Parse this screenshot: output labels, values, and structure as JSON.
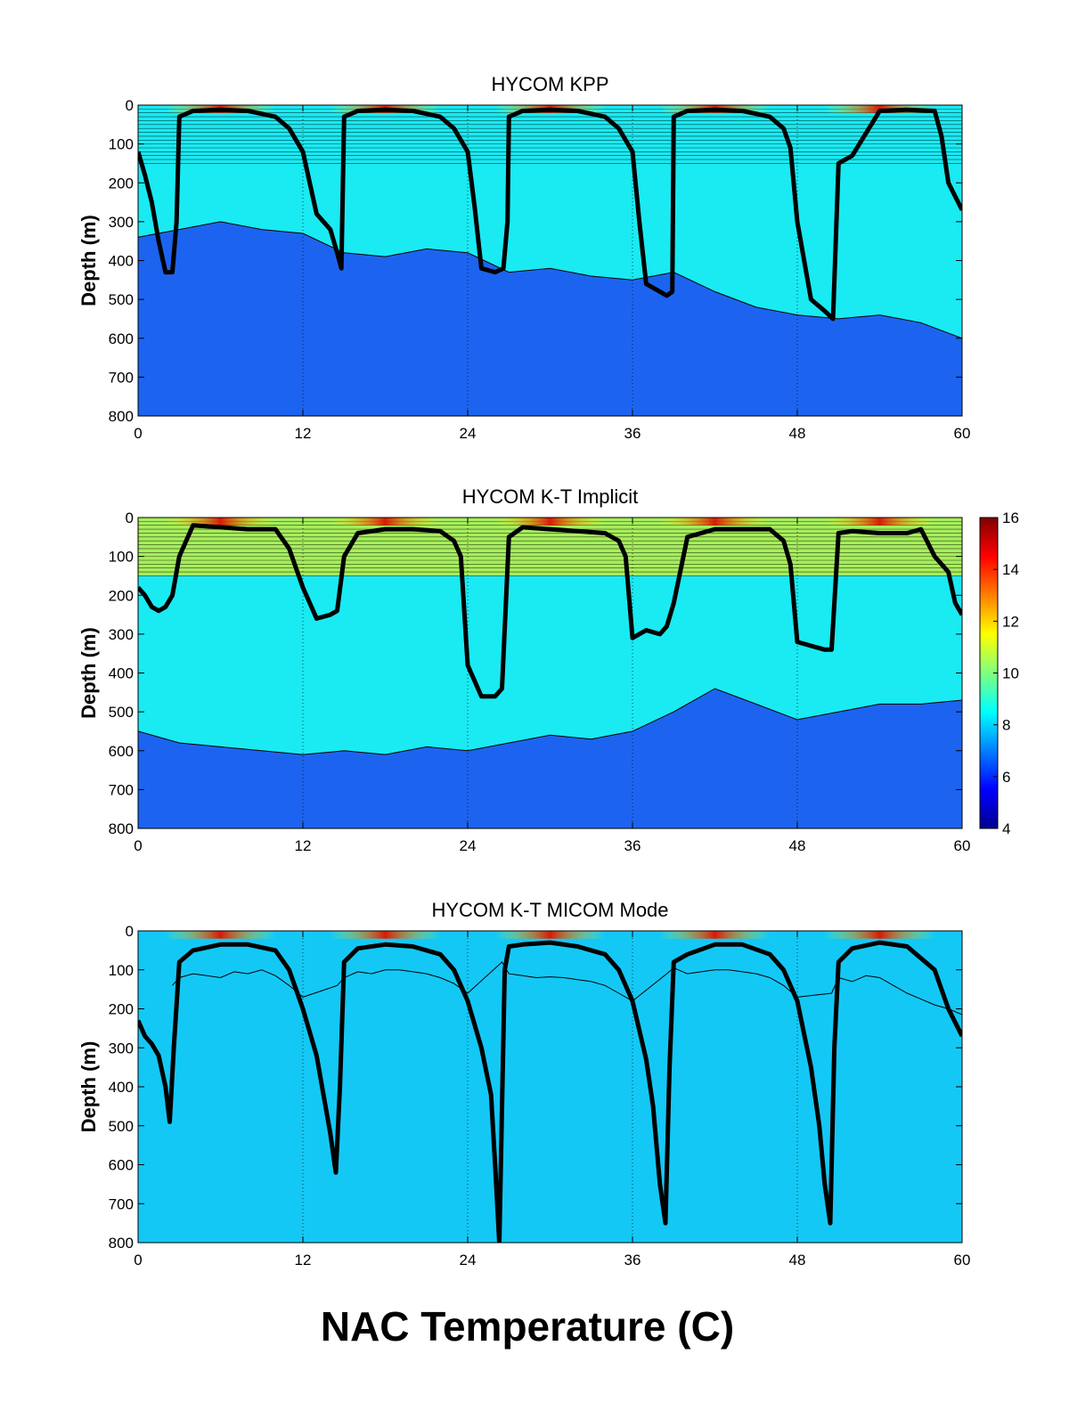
{
  "figure_title": "NAC Temperature (C)",
  "chart_data": [
    {
      "type": "heatmap",
      "title": "HYCOM KPP",
      "ylabel": "Depth (m)",
      "xlabel": "",
      "xlim": [
        0,
        60
      ],
      "ylim": [
        800,
        0
      ],
      "y_reversed": true,
      "xticks": [
        0,
        12,
        24,
        36,
        48,
        60
      ],
      "yticks": [
        0,
        100,
        200,
        300,
        400,
        500,
        600,
        700,
        800
      ],
      "colormap": "jet",
      "color_range": [
        4,
        16
      ],
      "interface_lines_top_depth": 150,
      "iso_contour_depth": {
        "x": [
          0,
          3,
          6,
          9,
          12,
          15,
          18,
          21,
          24,
          27,
          30,
          33,
          36,
          39,
          42,
          45,
          48,
          51,
          54,
          57,
          60
        ],
        "y": [
          340,
          320,
          300,
          320,
          330,
          380,
          390,
          370,
          380,
          430,
          420,
          440,
          450,
          430,
          480,
          520,
          540,
          550,
          540,
          560,
          600
        ]
      },
      "mixed_layer_depth": {
        "x": [
          0,
          0.5,
          1,
          1.5,
          2,
          2.5,
          2.8,
          3,
          4,
          6,
          8,
          10,
          11,
          12,
          12.5,
          13,
          14,
          14.5,
          14.8,
          15,
          16,
          18,
          20,
          22,
          23,
          24,
          24.5,
          25,
          26,
          26.6,
          26.9,
          27,
          28,
          30,
          32,
          34,
          35,
          36,
          36.5,
          37,
          38,
          38.5,
          38.9,
          39,
          40,
          42,
          44,
          46,
          47,
          47.5,
          48,
          49,
          50,
          50.6,
          51,
          52,
          54,
          56,
          58,
          58.5,
          59,
          60
        ],
        "y": [
          120,
          180,
          250,
          350,
          430,
          430,
          300,
          30,
          15,
          12,
          15,
          30,
          60,
          120,
          200,
          280,
          320,
          380,
          420,
          30,
          15,
          12,
          15,
          30,
          60,
          120,
          260,
          420,
          430,
          420,
          300,
          30,
          15,
          12,
          15,
          30,
          60,
          120,
          300,
          460,
          480,
          490,
          480,
          30,
          15,
          12,
          15,
          30,
          60,
          110,
          300,
          500,
          530,
          550,
          150,
          130,
          15,
          12,
          15,
          80,
          200,
          270
        ]
      }
    },
    {
      "type": "heatmap",
      "title": "HYCOM K-T Implicit",
      "ylabel": "Depth (m)",
      "xlabel": "",
      "xlim": [
        0,
        60
      ],
      "ylim": [
        800,
        0
      ],
      "y_reversed": true,
      "xticks": [
        0,
        12,
        24,
        36,
        48,
        60
      ],
      "yticks": [
        0,
        100,
        200,
        300,
        400,
        500,
        600,
        700,
        800
      ],
      "colormap": "jet",
      "color_range": [
        4,
        16
      ],
      "colorbar_ticks": [
        4,
        6,
        8,
        10,
        12,
        14,
        16
      ],
      "interface_lines_top_depth": 150,
      "iso_contour_depth": {
        "x": [
          0,
          3,
          6,
          9,
          12,
          15,
          18,
          21,
          24,
          27,
          30,
          33,
          36,
          39,
          42,
          45,
          48,
          51,
          54,
          57,
          60
        ],
        "y": [
          550,
          580,
          590,
          600,
          610,
          600,
          610,
          590,
          600,
          580,
          560,
          570,
          550,
          500,
          440,
          480,
          520,
          500,
          480,
          480,
          470
        ]
      },
      "mixed_layer_depth": {
        "x": [
          0,
          0.5,
          1,
          1.5,
          2,
          2.5,
          3,
          4,
          6,
          8,
          10,
          11,
          12,
          13,
          14,
          14.5,
          15,
          16,
          18,
          20,
          22,
          23,
          23.5,
          24,
          25,
          26,
          26.5,
          27,
          28,
          30,
          32,
          34,
          35,
          35.5,
          36,
          37,
          38,
          38.5,
          39,
          40,
          42,
          44,
          46,
          47,
          47.5,
          48,
          49,
          50,
          50.5,
          51,
          52,
          54,
          56,
          57,
          58,
          59,
          59.5,
          60
        ],
        "y": [
          180,
          200,
          230,
          240,
          230,
          200,
          100,
          20,
          25,
          30,
          30,
          80,
          180,
          260,
          250,
          240,
          100,
          40,
          30,
          30,
          35,
          60,
          100,
          380,
          460,
          460,
          440,
          50,
          25,
          30,
          35,
          40,
          60,
          100,
          310,
          290,
          300,
          280,
          220,
          50,
          30,
          30,
          30,
          60,
          120,
          320,
          330,
          340,
          340,
          40,
          35,
          40,
          40,
          30,
          100,
          140,
          220,
          250
        ]
      }
    },
    {
      "type": "heatmap",
      "title": "HYCOM K-T MICOM Mode",
      "ylabel": "Depth (m)",
      "xlabel": "",
      "xlim": [
        0,
        60
      ],
      "ylim": [
        800,
        0
      ],
      "y_reversed": true,
      "xticks": [
        0,
        12,
        24,
        36,
        48,
        60
      ],
      "yticks": [
        0,
        100,
        200,
        300,
        400,
        500,
        600,
        700,
        800
      ],
      "colormap": "jet",
      "color_range": [
        4,
        16
      ],
      "isopycnal_depth": {
        "x": [
          2.5,
          3,
          4,
          5,
          6,
          7,
          8,
          9,
          10,
          11,
          12,
          14.5,
          15,
          16,
          17,
          18,
          19,
          20,
          21,
          22,
          23,
          24,
          26.5,
          27,
          28,
          29,
          30,
          31,
          32,
          33,
          34,
          35,
          36,
          38.5,
          39,
          40,
          41,
          42,
          43,
          44,
          45,
          46,
          47,
          48,
          50.5,
          51,
          52,
          53,
          54,
          55,
          56,
          57,
          58,
          59,
          60
        ],
        "y": [
          140,
          120,
          110,
          115,
          120,
          105,
          110,
          100,
          115,
          140,
          170,
          140,
          120,
          105,
          110,
          100,
          100,
          105,
          110,
          120,
          135,
          160,
          80,
          110,
          115,
          120,
          118,
          120,
          125,
          130,
          140,
          160,
          180,
          110,
          95,
          110,
          105,
          100,
          100,
          105,
          110,
          120,
          140,
          170,
          160,
          120,
          130,
          115,
          120,
          140,
          160,
          175,
          190,
          200,
          215
        ]
      },
      "mixed_layer_depth": {
        "x": [
          0,
          0.5,
          1,
          1.5,
          2,
          2.3,
          2.6,
          3,
          4,
          6,
          8,
          10,
          11,
          12,
          13,
          13.5,
          14,
          14.4,
          14.7,
          15,
          16,
          18,
          20,
          22,
          23,
          24,
          25,
          25.7,
          26,
          26.3,
          26.7,
          27,
          28,
          30,
          32,
          34,
          35,
          36,
          37,
          37.5,
          38,
          38.4,
          38.7,
          39,
          40,
          42,
          44,
          46,
          47,
          48,
          49,
          49.6,
          50,
          50.4,
          50.7,
          51,
          52,
          54,
          56,
          58,
          59,
          60
        ],
        "y": [
          230,
          270,
          290,
          320,
          400,
          490,
          300,
          80,
          50,
          35,
          35,
          50,
          100,
          200,
          320,
          420,
          520,
          620,
          400,
          80,
          45,
          35,
          40,
          60,
          100,
          180,
          300,
          420,
          600,
          800,
          100,
          40,
          35,
          30,
          40,
          60,
          100,
          180,
          330,
          450,
          650,
          750,
          350,
          80,
          60,
          35,
          35,
          60,
          100,
          180,
          350,
          500,
          650,
          750,
          300,
          80,
          45,
          30,
          40,
          100,
          200,
          270
        ]
      }
    }
  ]
}
